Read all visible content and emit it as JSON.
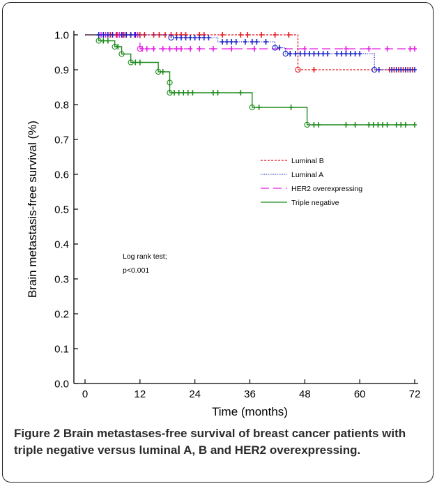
{
  "chart_data": {
    "type": "line",
    "subtype": "kaplan-meier step survival curves with censor marks",
    "ylabel": "Brain metastasis-free survival (%)",
    "xlabel": "Time (months)",
    "xlim": [
      0,
      72
    ],
    "ylim": [
      0,
      1.0
    ],
    "xticks": [
      "0",
      "12",
      "24",
      "36",
      "48",
      "60",
      "72"
    ],
    "yticks": [
      "0.0",
      "0.1",
      "0.2",
      "0.3",
      "0.4",
      "0.5",
      "0.6",
      "0.7",
      "0.8",
      "0.9",
      "1.0"
    ],
    "grid": false,
    "legend_position": "center-right",
    "annotation_lines": [
      "Log rank test;",
      "p<0.001"
    ],
    "series": [
      {
        "name": "Luminal B",
        "color": "#e8141c",
        "dash": "dotted-short",
        "steps": [
          [
            0,
            1.0
          ],
          [
            46.5,
            0.9
          ],
          [
            72,
            0.9
          ]
        ],
        "events": [
          [
            46.5,
            0.9
          ]
        ],
        "censors": [
          [
            5.5,
            1.0
          ],
          [
            7,
            1.0
          ],
          [
            8.5,
            1.0
          ],
          [
            10,
            1.0
          ],
          [
            12,
            1.0
          ],
          [
            13,
            1.0
          ],
          [
            15,
            1.0
          ],
          [
            16.2,
            1.0
          ],
          [
            17.5,
            1.0
          ],
          [
            18.8,
            1.0
          ],
          [
            20,
            1.0
          ],
          [
            21,
            1.0
          ],
          [
            22,
            1.0
          ],
          [
            25,
            1.0
          ],
          [
            26,
            1.0
          ],
          [
            30,
            1.0
          ],
          [
            34,
            1.0
          ],
          [
            35.5,
            1.0
          ],
          [
            38.5,
            1.0
          ],
          [
            41.5,
            1.0
          ],
          [
            44.5,
            1.0
          ],
          [
            50,
            0.9
          ],
          [
            66.5,
            0.9
          ],
          [
            67.5,
            0.9
          ],
          [
            68.5,
            0.9
          ],
          [
            69.5,
            0.9
          ],
          [
            70.5,
            0.9
          ],
          [
            71.5,
            0.9
          ]
        ]
      },
      {
        "name": "Luminal A",
        "color": "#1a24c8",
        "dash": "dotted-fine",
        "steps": [
          [
            0,
            1.0
          ],
          [
            18.8,
            0.992
          ],
          [
            29,
            0.98
          ],
          [
            35.5,
            0.98
          ],
          [
            41.5,
            0.963
          ],
          [
            43,
            0.963
          ],
          [
            43.8,
            0.946
          ],
          [
            63.2,
            0.946
          ],
          [
            63.2,
            0.9
          ],
          [
            72,
            0.9
          ]
        ],
        "events": [
          [
            18.8,
            0.992
          ],
          [
            41.5,
            0.963
          ],
          [
            43.8,
            0.946
          ],
          [
            63.2,
            0.9
          ]
        ],
        "censors": [
          [
            3,
            1.0
          ],
          [
            4,
            1.0
          ],
          [
            5,
            1.0
          ],
          [
            6,
            1.0
          ],
          [
            8,
            1.0
          ],
          [
            9,
            1.0
          ],
          [
            10,
            1.0
          ],
          [
            11,
            1.0
          ],
          [
            20,
            0.992
          ],
          [
            21,
            0.992
          ],
          [
            22,
            0.992
          ],
          [
            23,
            0.992
          ],
          [
            24,
            0.992
          ],
          [
            25,
            0.992
          ],
          [
            26,
            0.992
          ],
          [
            27,
            0.992
          ],
          [
            30,
            0.98
          ],
          [
            31,
            0.98
          ],
          [
            32,
            0.98
          ],
          [
            33,
            0.98
          ],
          [
            35,
            0.98
          ],
          [
            36.5,
            0.98
          ],
          [
            37.5,
            0.98
          ],
          [
            39.5,
            0.98
          ],
          [
            42.5,
            0.963
          ],
          [
            44.8,
            0.946
          ],
          [
            46,
            0.946
          ],
          [
            47,
            0.946
          ],
          [
            48,
            0.946
          ],
          [
            49,
            0.946
          ],
          [
            50,
            0.946
          ],
          [
            51,
            0.946
          ],
          [
            52,
            0.946
          ],
          [
            53,
            0.946
          ],
          [
            55,
            0.946
          ],
          [
            56,
            0.946
          ],
          [
            57,
            0.946
          ],
          [
            58,
            0.946
          ],
          [
            59,
            0.946
          ],
          [
            60,
            0.946
          ],
          [
            64.2,
            0.9
          ],
          [
            67,
            0.9
          ],
          [
            68,
            0.9
          ],
          [
            69,
            0.9
          ],
          [
            70,
            0.9
          ],
          [
            71,
            0.9
          ],
          [
            72,
            0.9
          ]
        ]
      },
      {
        "name": "HER2 overexpressing",
        "color": "#e61ee6",
        "dash": "long-dash",
        "steps": [
          [
            0,
            1.0
          ],
          [
            12,
            0.96
          ],
          [
            72,
            0.96
          ]
        ],
        "events": [
          [
            12,
            0.96
          ]
        ],
        "censors": [
          [
            3.5,
            1.0
          ],
          [
            4.5,
            1.0
          ],
          [
            6,
            1.0
          ],
          [
            6.8,
            1.0
          ],
          [
            7.5,
            1.0
          ],
          [
            8.2,
            1.0
          ],
          [
            9,
            1.0
          ],
          [
            10,
            1.0
          ],
          [
            10.8,
            1.0
          ],
          [
            11.5,
            1.0
          ],
          [
            12.5,
            0.96
          ],
          [
            13.5,
            0.96
          ],
          [
            15,
            0.96
          ],
          [
            17,
            0.96
          ],
          [
            18.5,
            0.96
          ],
          [
            20,
            0.96
          ],
          [
            21,
            0.96
          ],
          [
            23,
            0.96
          ],
          [
            25,
            0.96
          ],
          [
            28,
            0.96
          ],
          [
            32,
            0.96
          ],
          [
            37,
            0.96
          ],
          [
            48,
            0.96
          ],
          [
            57,
            0.96
          ],
          [
            62,
            0.96
          ],
          [
            66,
            0.96
          ],
          [
            71,
            0.96
          ],
          [
            72,
            0.96
          ]
        ]
      },
      {
        "name": "Triple negative",
        "color": "#1d8a1d",
        "dash": "solid",
        "steps": [
          [
            0,
            1.0
          ],
          [
            3,
            0.983
          ],
          [
            6.5,
            0.966
          ],
          [
            8,
            0.945
          ],
          [
            10,
            0.921
          ],
          [
            13.5,
            0.921
          ],
          [
            16,
            0.894
          ],
          [
            18.5,
            0.863
          ],
          [
            18.5,
            0.834
          ],
          [
            36.5,
            0.834
          ],
          [
            36.5,
            0.792
          ],
          [
            48.5,
            0.792
          ],
          [
            48.5,
            0.742
          ],
          [
            72,
            0.742
          ]
        ],
        "events": [
          [
            3,
            0.983
          ],
          [
            6.5,
            0.966
          ],
          [
            8,
            0.945
          ],
          [
            10,
            0.921
          ],
          [
            16,
            0.894
          ],
          [
            18.5,
            0.863
          ],
          [
            18.5,
            0.834
          ],
          [
            36.5,
            0.792
          ],
          [
            48.5,
            0.742
          ]
        ],
        "censors": [
          [
            4,
            0.983
          ],
          [
            5,
            0.983
          ],
          [
            7.2,
            0.966
          ],
          [
            11,
            0.921
          ],
          [
            12,
            0.921
          ],
          [
            17,
            0.894
          ],
          [
            19.5,
            0.834
          ],
          [
            20.5,
            0.834
          ],
          [
            21.5,
            0.834
          ],
          [
            22.5,
            0.834
          ],
          [
            23.5,
            0.834
          ],
          [
            28,
            0.834
          ],
          [
            29,
            0.834
          ],
          [
            34,
            0.834
          ],
          [
            38,
            0.792
          ],
          [
            45,
            0.792
          ],
          [
            50,
            0.742
          ],
          [
            51,
            0.742
          ],
          [
            57,
            0.742
          ],
          [
            59,
            0.742
          ],
          [
            62,
            0.742
          ],
          [
            63,
            0.742
          ],
          [
            64,
            0.742
          ],
          [
            65,
            0.742
          ],
          [
            66,
            0.742
          ],
          [
            68,
            0.742
          ],
          [
            69,
            0.742
          ],
          [
            70,
            0.742
          ],
          [
            72,
            0.742
          ]
        ]
      }
    ]
  },
  "caption": {
    "label": "Figure 2",
    "text": " Brain metastases-free survival of breast cancer patients with triple negative versus luminal A, B and HER2 overexpressing."
  }
}
